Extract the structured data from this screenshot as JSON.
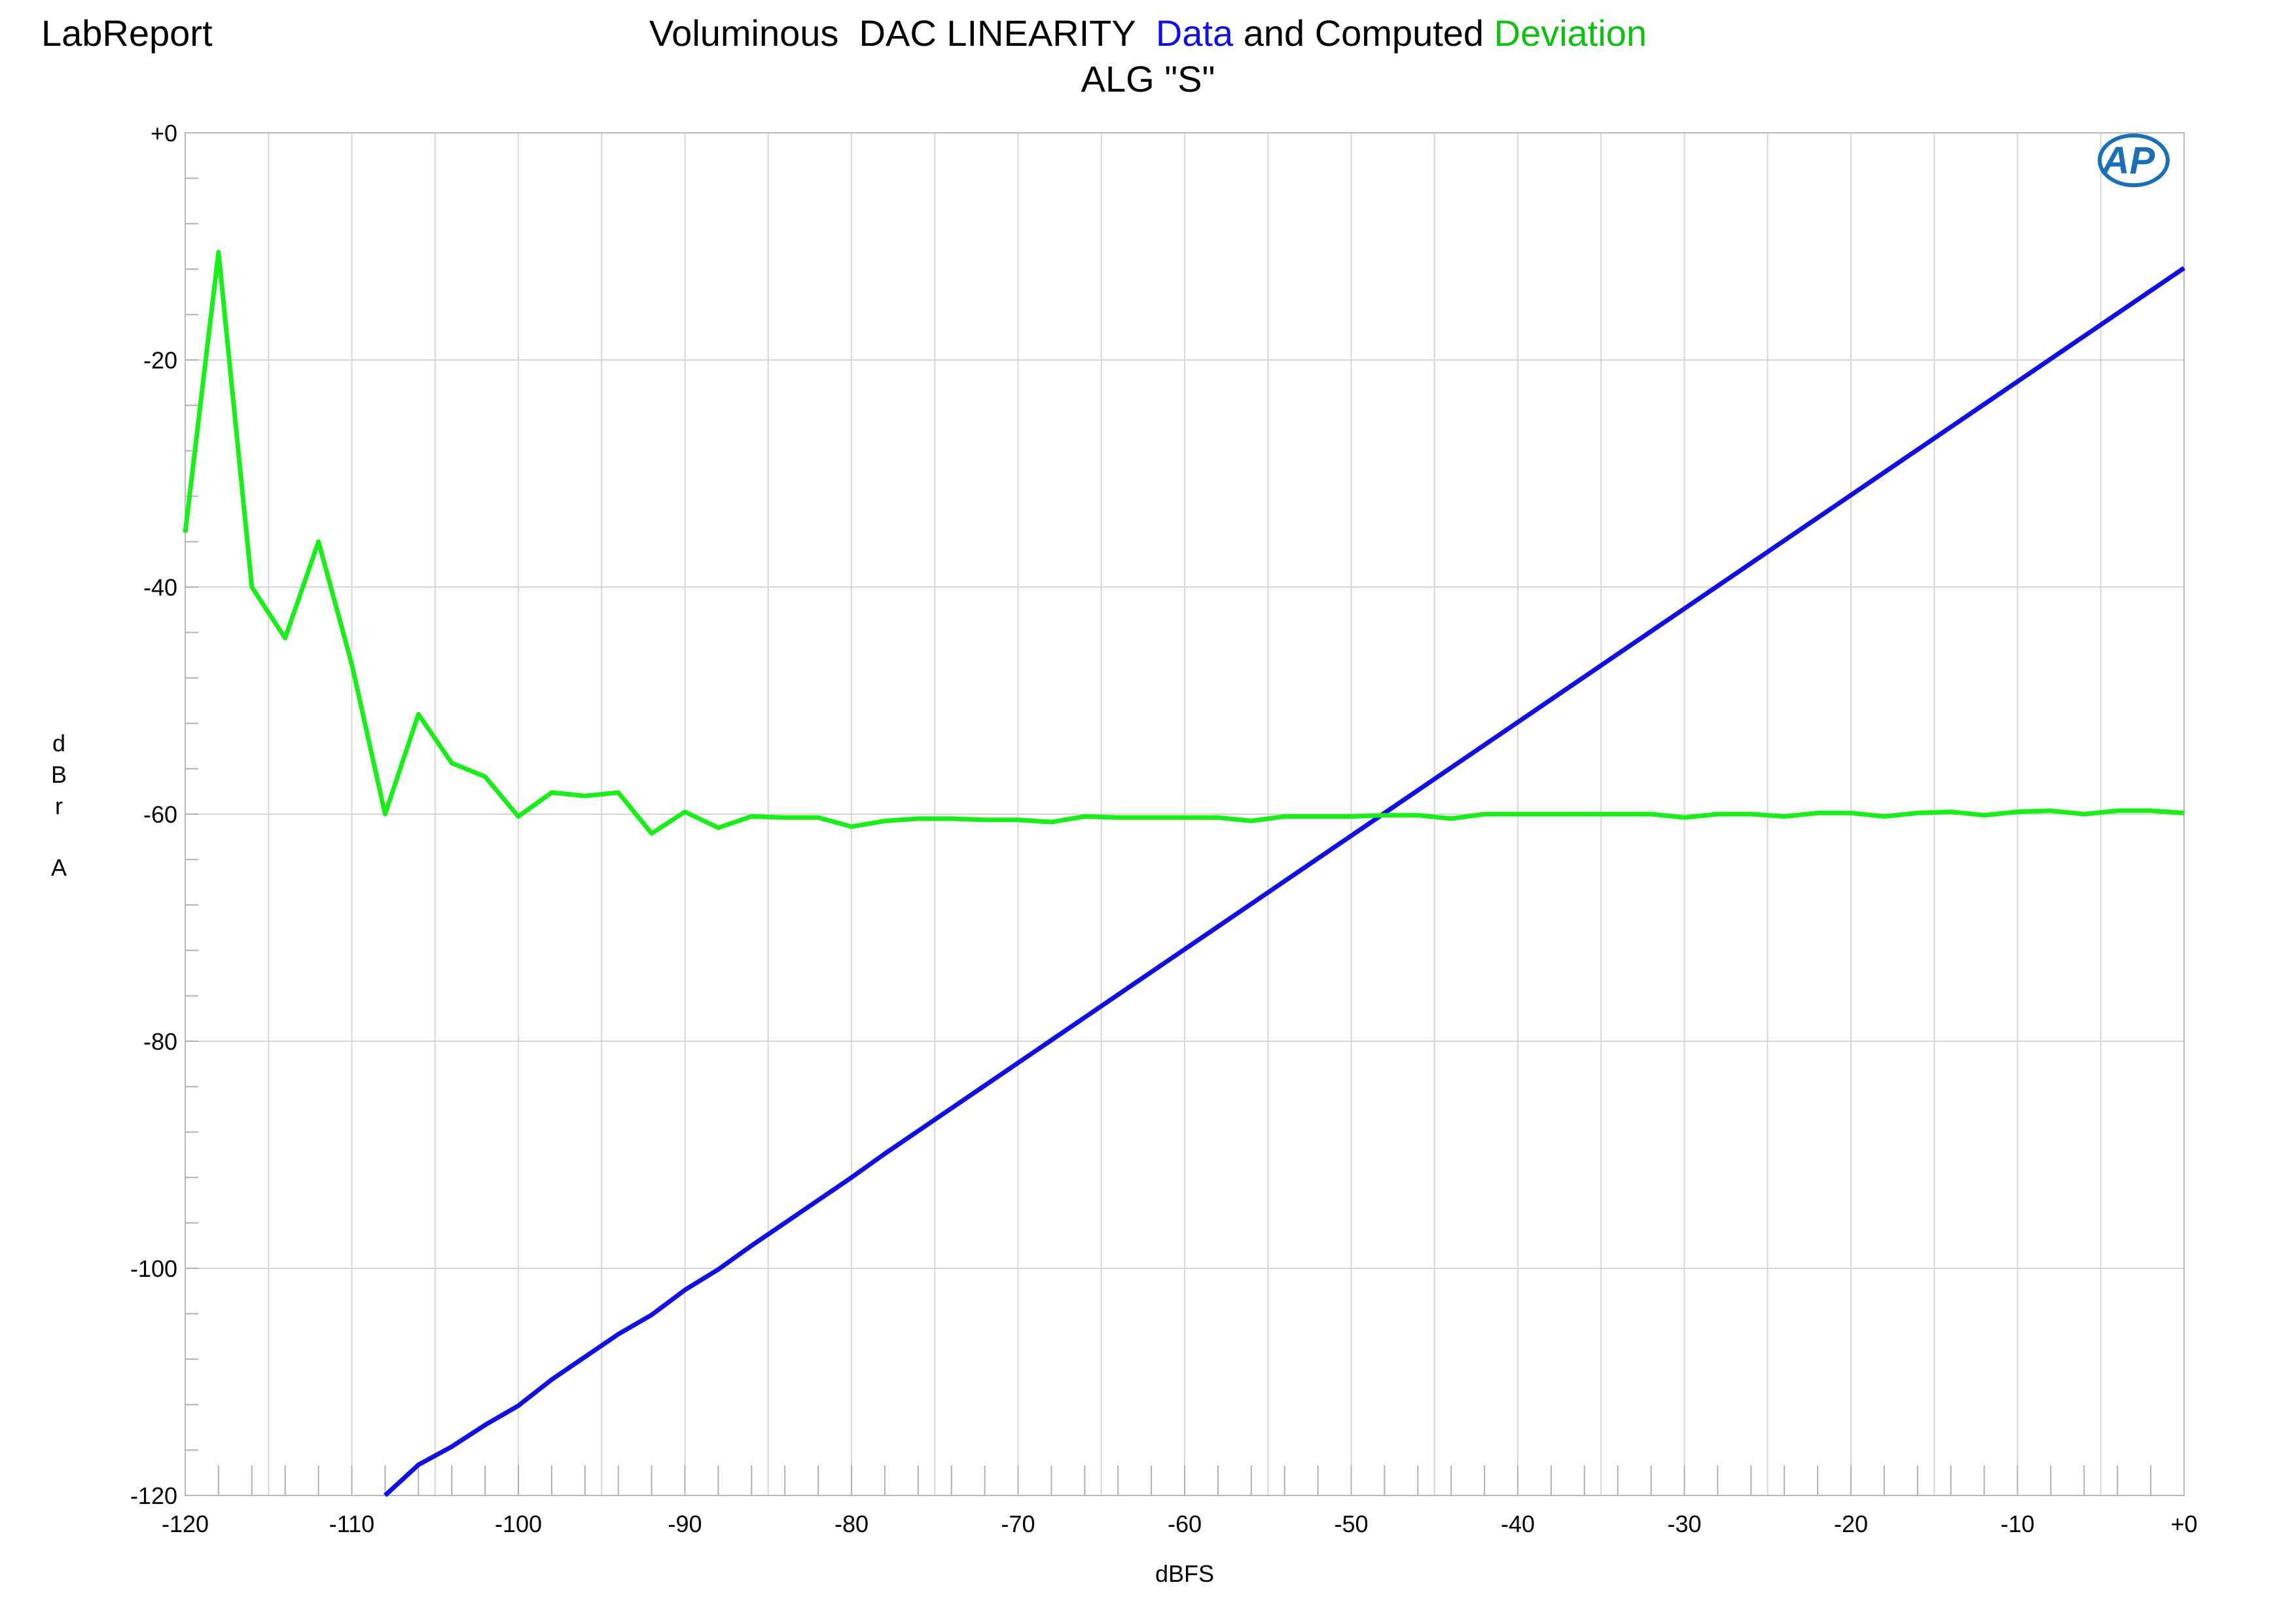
{
  "header": {
    "corner_label": "LabReport",
    "title_prefix": "Voluminous  DAC LINEARITY  ",
    "title_data_word": "Data",
    "title_middle": " and Computed ",
    "title_deviation_word": "Deviation",
    "subtitle": "ALG \"S\""
  },
  "logo": {
    "text": "AP",
    "name": "ap-logo"
  },
  "colors": {
    "data": "#1010e0",
    "deviation": "#1aee1a",
    "grid": "#d6d6d6",
    "title_blue": "#1010e0",
    "title_green": "#10c010"
  },
  "chart_data": {
    "type": "line",
    "xlabel": "dBFS",
    "ylabel": "dBrA",
    "xlim": [
      -120,
      0
    ],
    "ylim": [
      -120,
      0
    ],
    "x_ticks": [
      {
        "value": -120,
        "label": "-120"
      },
      {
        "value": -110,
        "label": "-110"
      },
      {
        "value": -100,
        "label": "-100"
      },
      {
        "value": -90,
        "label": "-90"
      },
      {
        "value": -80,
        "label": "-80"
      },
      {
        "value": -70,
        "label": "-70"
      },
      {
        "value": -60,
        "label": "-60"
      },
      {
        "value": -50,
        "label": "-50"
      },
      {
        "value": -40,
        "label": "-40"
      },
      {
        "value": -30,
        "label": "-30"
      },
      {
        "value": -20,
        "label": "-20"
      },
      {
        "value": -10,
        "label": "-10"
      },
      {
        "value": 0,
        "label": "+0"
      }
    ],
    "y_ticks": [
      {
        "value": 0,
        "label": "+0"
      },
      {
        "value": -20,
        "label": "-20"
      },
      {
        "value": -40,
        "label": "-40"
      },
      {
        "value": -60,
        "label": "-60"
      },
      {
        "value": -80,
        "label": "-80"
      },
      {
        "value": -100,
        "label": "-100"
      },
      {
        "value": -120,
        "label": "-120"
      }
    ],
    "grid": true,
    "series": [
      {
        "name": "Data",
        "color": "#1010e0",
        "x": [
          -108,
          -106,
          -104,
          -102,
          -100,
          -98,
          -96,
          -94,
          -92,
          -90,
          -88,
          -86,
          -84,
          -82,
          -80,
          -78,
          -76,
          -74,
          -72,
          -70,
          -68,
          -66,
          -64,
          -62,
          -60,
          -58,
          -56,
          -54,
          -52,
          -50,
          -48,
          -46,
          -44,
          -42,
          -40,
          -38,
          -36,
          -34,
          -32,
          -30,
          -28,
          -26,
          -24,
          -22,
          -20,
          -18,
          -16,
          -14,
          -12,
          -10,
          -8,
          -6,
          -4,
          -2,
          0
        ],
        "y": [
          -120,
          -117.3,
          -115.7,
          -113.8,
          -112.1,
          -109.8,
          -107.8,
          -105.8,
          -104.1,
          -101.9,
          -100.1,
          -98.0,
          -96.0,
          -94.0,
          -92.0,
          -89.9,
          -87.9,
          -85.9,
          -83.9,
          -81.9,
          -79.9,
          -77.9,
          -75.9,
          -73.9,
          -71.9,
          -69.9,
          -67.9,
          -65.9,
          -63.9,
          -61.9,
          -59.9,
          -57.9,
          -55.9,
          -53.9,
          -51.9,
          -49.9,
          -47.9,
          -45.9,
          -43.9,
          -41.9,
          -39.9,
          -37.9,
          -35.9,
          -33.9,
          -31.9,
          -29.9,
          -27.9,
          -25.9,
          -23.9,
          -21.9,
          -19.9,
          -17.9,
          -15.9,
          -13.9,
          -11.9
        ]
      },
      {
        "name": "Deviation",
        "color": "#1aee1a",
        "x": [
          -120,
          -118,
          -116,
          -114,
          -112,
          -110,
          -108,
          -106,
          -104,
          -102,
          -100,
          -98,
          -96,
          -94,
          -92,
          -90,
          -88,
          -86,
          -84,
          -82,
          -80,
          -78,
          -76,
          -74,
          -72,
          -70,
          -68,
          -66,
          -64,
          -62,
          -60,
          -58,
          -56,
          -54,
          -52,
          -50,
          -48,
          -46,
          -44,
          -42,
          -40,
          -38,
          -36,
          -34,
          -32,
          -30,
          -28,
          -26,
          -24,
          -22,
          -20,
          -18,
          -16,
          -14,
          -12,
          -10,
          -8,
          -6,
          -4,
          -2,
          0
        ],
        "y": [
          -35.2,
          -10.5,
          -40.0,
          -44.5,
          -36.0,
          -46.8,
          -60.0,
          -51.2,
          -55.5,
          -56.7,
          -60.2,
          -58.1,
          -58.4,
          -58.1,
          -61.7,
          -59.8,
          -61.2,
          -60.2,
          -60.3,
          -60.3,
          -61.1,
          -60.6,
          -60.4,
          -60.4,
          -60.5,
          -60.5,
          -60.7,
          -60.2,
          -60.3,
          -60.3,
          -60.3,
          -60.3,
          -60.6,
          -60.2,
          -60.2,
          -60.2,
          -60.1,
          -60.1,
          -60.4,
          -60.0,
          -60.0,
          -60.0,
          -60.0,
          -60.0,
          -60.0,
          -60.3,
          -60.0,
          -60.0,
          -60.2,
          -59.9,
          -59.9,
          -60.2,
          -59.9,
          -59.8,
          -60.1,
          -59.8,
          -59.7,
          -60.0,
          -59.7,
          -59.7,
          -59.9
        ]
      }
    ]
  }
}
